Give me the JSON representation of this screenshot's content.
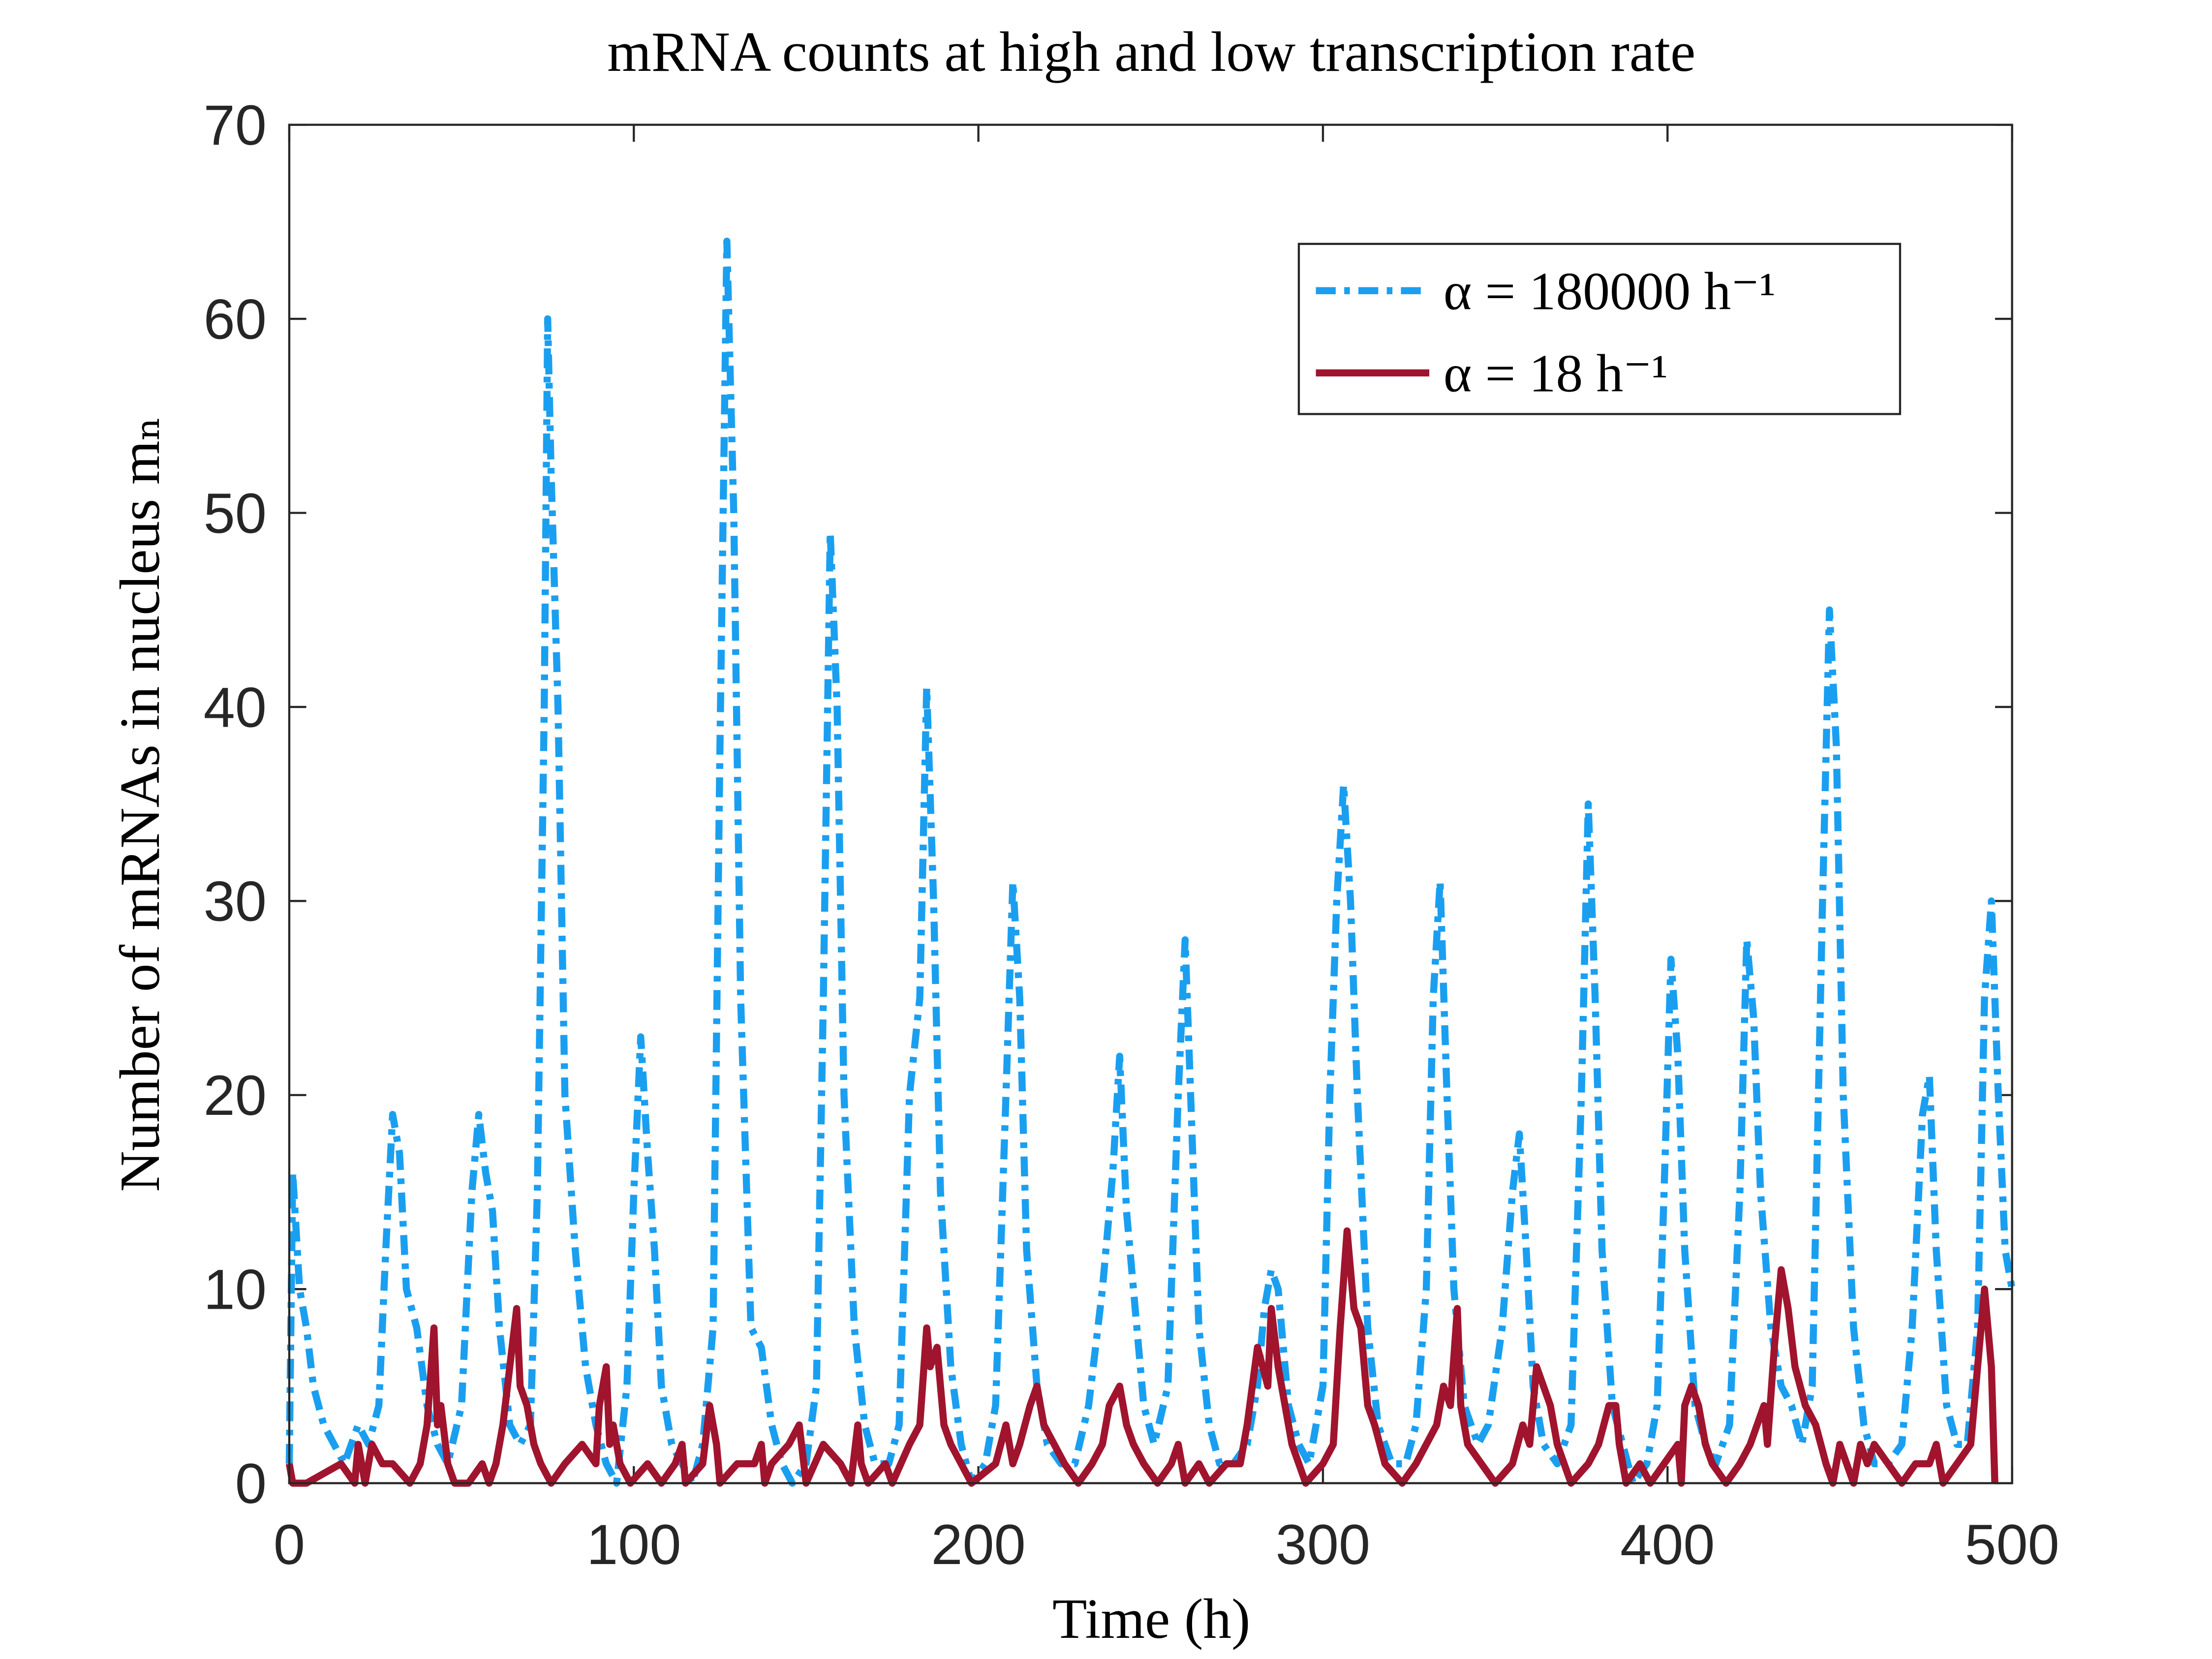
{
  "chart_data": {
    "type": "line",
    "title": "mRNA counts at high and low transcription rate",
    "x_label": "Time (h)",
    "y_label": "Number of mRNAs in nucleus mₙ",
    "xlim": [
      0,
      500
    ],
    "xticks": [
      0,
      100,
      200,
      300,
      400,
      500
    ],
    "ylim": [
      0,
      70
    ],
    "yticks": [
      0,
      10,
      20,
      30,
      40,
      50,
      60,
      70
    ],
    "legend_position": "upper right",
    "series": [
      {
        "name": "α = 180000 h⁻¹",
        "color": "#1a9ff0",
        "line_style": "dashdot",
        "x": [
          0,
          1,
          3,
          5,
          7,
          10,
          13,
          16,
          20,
          23,
          26,
          28,
          30,
          32,
          34,
          37,
          40,
          43,
          46,
          50,
          53,
          55,
          57,
          59,
          61,
          64,
          67,
          70,
          72,
          74,
          75,
          76,
          78,
          80,
          83,
          86,
          89,
          92,
          95,
          98,
          100,
          102,
          104,
          106,
          108,
          111,
          114,
          117,
          120,
          123,
          125,
          127,
          129,
          131,
          134,
          137,
          140,
          143,
          146,
          150,
          153,
          155,
          157,
          159,
          161,
          164,
          167,
          170,
          174,
          177,
          180,
          183,
          185,
          187,
          189,
          192,
          195,
          198,
          202,
          205,
          208,
          210,
          212,
          214,
          217,
          220,
          224,
          228,
          232,
          236,
          239,
          241,
          243,
          245,
          248,
          251,
          255,
          258,
          260,
          262,
          264,
          267,
          270,
          274,
          278,
          281,
          283,
          285,
          287,
          290,
          293,
          296,
          300,
          302,
          304,
          306,
          308,
          310,
          313,
          316,
          320,
          324,
          327,
          330,
          332,
          334,
          336,
          338,
          341,
          345,
          348,
          352,
          355,
          357,
          359,
          361,
          364,
          368,
          372,
          375,
          377,
          379,
          381,
          384,
          387,
          390,
          394,
          397,
          399,
          401,
          403,
          405,
          408,
          411,
          414,
          418,
          421,
          423,
          425,
          427,
          430,
          433,
          436,
          439,
          442,
          445,
          447,
          449,
          451,
          454,
          457,
          460,
          464,
          468,
          471,
          474,
          476,
          478,
          481,
          484,
          487,
          490,
          492,
          494,
          496,
          498,
          500
        ],
        "values": [
          1,
          16,
          10,
          8,
          5,
          3,
          2,
          1,
          3,
          2,
          4,
          12,
          19,
          17,
          10,
          8,
          4,
          2,
          1,
          4,
          15,
          19,
          16,
          14,
          8,
          3,
          2,
          3,
          15,
          40,
          60,
          52,
          40,
          20,
          12,
          6,
          3,
          1,
          0,
          5,
          15,
          23,
          17,
          12,
          5,
          2,
          1,
          0,
          2,
          8,
          38,
          64,
          50,
          25,
          8,
          7,
          3,
          1,
          0,
          1,
          5,
          25,
          49,
          40,
          20,
          8,
          3,
          1,
          1,
          3,
          20,
          25,
          41,
          30,
          15,
          6,
          2,
          0,
          1,
          4,
          20,
          31,
          25,
          12,
          5,
          2,
          1,
          1,
          4,
          10,
          16,
          22,
          14,
          10,
          4,
          2,
          5,
          20,
          28,
          18,
          8,
          3,
          1,
          1,
          2,
          5,
          9,
          11,
          10,
          4,
          2,
          1,
          5,
          20,
          30,
          36,
          30,
          20,
          8,
          3,
          1,
          1,
          3,
          10,
          25,
          31,
          20,
          10,
          4,
          2,
          3,
          8,
          15,
          18,
          12,
          5,
          2,
          1,
          3,
          20,
          35,
          25,
          12,
          4,
          2,
          0,
          1,
          4,
          15,
          27,
          22,
          12,
          4,
          2,
          1,
          3,
          15,
          28,
          24,
          15,
          8,
          5,
          4,
          2,
          5,
          30,
          45,
          38,
          20,
          8,
          3,
          1,
          1,
          2,
          8,
          19,
          21,
          12,
          4,
          2,
          2,
          8,
          25,
          30,
          20,
          12,
          10
        ]
      },
      {
        "name": "α = 18 h⁻¹",
        "color": "#a0142e",
        "line_style": "solid",
        "x": [
          0,
          1,
          5,
          10,
          15,
          19,
          20,
          21,
          22,
          24,
          27,
          30,
          35,
          38,
          40,
          42,
          43,
          44,
          46,
          48,
          52,
          56,
          58,
          60,
          62,
          64,
          66,
          67,
          69,
          71,
          73,
          76,
          80,
          85,
          89,
          90,
          92,
          93,
          94,
          96,
          99,
          104,
          108,
          112,
          114,
          115,
          120,
          122,
          123,
          124,
          125,
          130,
          135,
          137,
          138,
          140,
          145,
          148,
          150,
          155,
          160,
          163,
          165,
          166,
          168,
          173,
          175,
          180,
          183,
          185,
          186,
          188,
          190,
          192,
          195,
          198,
          205,
          208,
          210,
          212,
          215,
          217,
          219,
          222,
          225,
          229,
          233,
          236,
          238,
          241,
          243,
          245,
          248,
          252,
          256,
          258,
          260,
          264,
          267,
          272,
          276,
          278,
          281,
          284,
          285,
          287,
          289,
          291,
          295,
          300,
          303,
          305,
          307,
          309,
          311,
          313,
          315,
          318,
          323,
          327,
          330,
          333,
          335,
          337,
          339,
          340,
          342,
          346,
          350,
          355,
          358,
          360,
          362,
          364,
          366,
          368,
          372,
          377,
          380,
          383,
          385,
          386,
          388,
          392,
          395,
          399,
          403,
          404,
          405,
          407,
          409,
          411,
          413,
          417,
          421,
          424,
          428,
          429,
          431,
          433,
          435,
          437,
          440,
          443,
          446,
          448,
          450,
          452,
          454,
          456,
          458,
          460,
          464,
          468,
          472,
          476,
          478,
          480,
          484,
          488,
          490,
          492,
          494,
          495
        ],
        "values": [
          1,
          0,
          0,
          0.5,
          1,
          0,
          2,
          1,
          0,
          2,
          1,
          1,
          0,
          1,
          3,
          8,
          3,
          4,
          1,
          0,
          0,
          1,
          0,
          1,
          3,
          6,
          9,
          5,
          4,
          2,
          1,
          0,
          1,
          2,
          1,
          4,
          6,
          2,
          3,
          1,
          0,
          1,
          0,
          1,
          2,
          0,
          1,
          4,
          3,
          2,
          0,
          1,
          1,
          2,
          0,
          1,
          2,
          3,
          0,
          2,
          1,
          0,
          3,
          1,
          0,
          1,
          0,
          2,
          3,
          8,
          6,
          7,
          3,
          2,
          1,
          0,
          1,
          3,
          1,
          2,
          4,
          5,
          3,
          2,
          1,
          0,
          1,
          2,
          4,
          5,
          3,
          2,
          1,
          0,
          1,
          2,
          0,
          1,
          0,
          1,
          1,
          3,
          7,
          5,
          9,
          6,
          4,
          2,
          0,
          1,
          2,
          8,
          13,
          9,
          8,
          4,
          3,
          1,
          0,
          1,
          2,
          3,
          5,
          4,
          9,
          4,
          2,
          1,
          0,
          1,
          3,
          2,
          6,
          5,
          4,
          2,
          0,
          1,
          2,
          4,
          4,
          2,
          0,
          1,
          0,
          1,
          2,
          0,
          4,
          5,
          4,
          2,
          1,
          0,
          1,
          2,
          4,
          2,
          7,
          11,
          9,
          6,
          4,
          3,
          1,
          0,
          2,
          1,
          0,
          2,
          1,
          2,
          1,
          0,
          1,
          1,
          2,
          0,
          1,
          2,
          6,
          10,
          6,
          0
        ]
      }
    ]
  }
}
